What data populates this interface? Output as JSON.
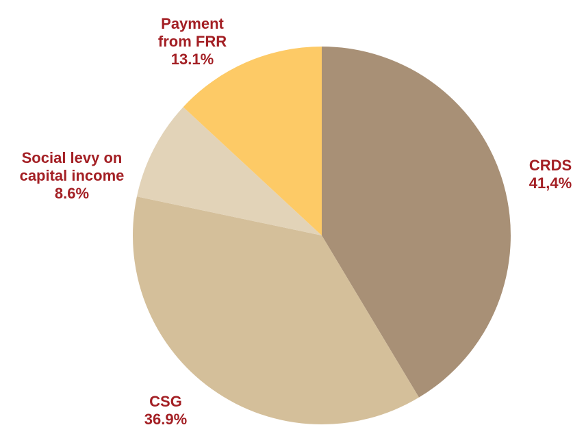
{
  "chart_data": {
    "type": "pie",
    "categories": [
      "CRDS",
      "CSG",
      "Social levy on capital income",
      "Payment from FRR"
    ],
    "values": [
      41.4,
      36.9,
      8.6,
      13.1
    ],
    "value_labels": [
      "41,4%",
      "36.9%",
      "8.6%",
      "13.1%"
    ],
    "colors": [
      "#a89076",
      "#d4bf9a",
      "#e2d3b8",
      "#fdca66"
    ]
  }
}
